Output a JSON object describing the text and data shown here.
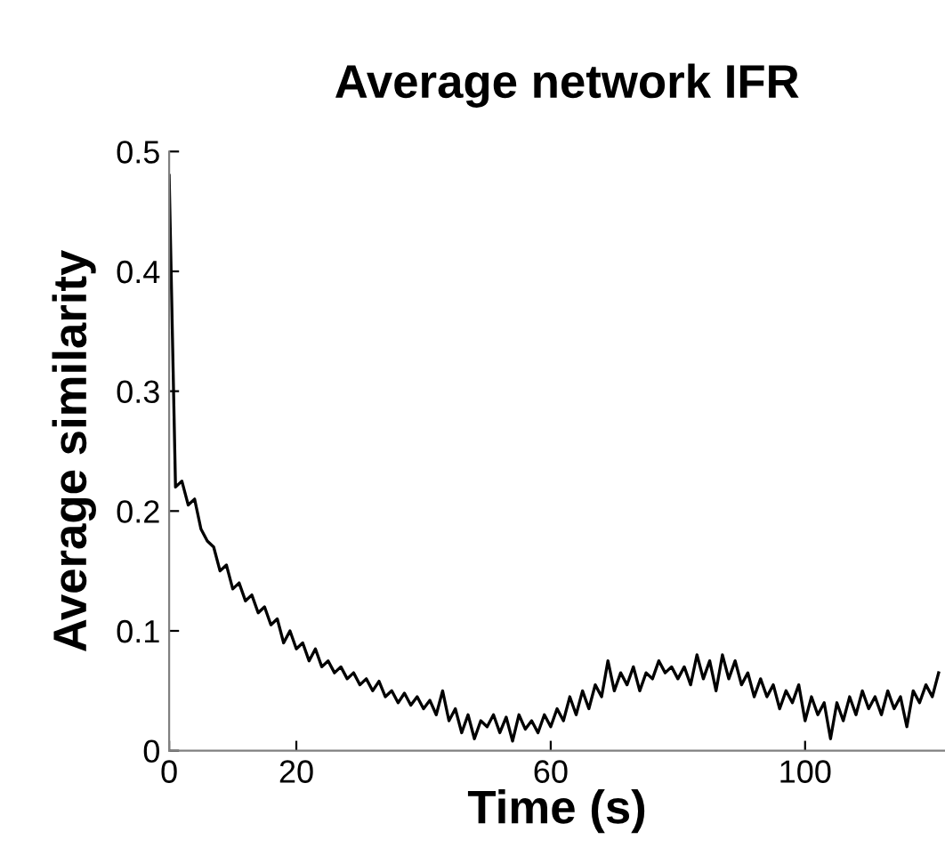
{
  "chart_data": {
    "type": "line",
    "title": "Average network IFR",
    "xlabel": "Time (s)",
    "ylabel": "Average similarity",
    "x": [
      0,
      1,
      2,
      3,
      4,
      5,
      6,
      7,
      8,
      9,
      10,
      11,
      12,
      13,
      14,
      15,
      16,
      17,
      18,
      19,
      20,
      21,
      22,
      23,
      24,
      25,
      26,
      27,
      28,
      29,
      30,
      31,
      32,
      33,
      34,
      35,
      36,
      37,
      38,
      39,
      40,
      41,
      42,
      43,
      44,
      45,
      46,
      47,
      48,
      49,
      50,
      51,
      52,
      53,
      54,
      55,
      56,
      57,
      58,
      59,
      60,
      61,
      62,
      63,
      64,
      65,
      66,
      67,
      68,
      69,
      70,
      71,
      72,
      73,
      74,
      75,
      76,
      77,
      78,
      79,
      80,
      81,
      82,
      83,
      84,
      85,
      86,
      87,
      88,
      89,
      90,
      91,
      92,
      93,
      94,
      95,
      96,
      97,
      98,
      99,
      100,
      101,
      102,
      103,
      104,
      105,
      106,
      107,
      108,
      109,
      110,
      111,
      112,
      113,
      114,
      115,
      116,
      117,
      118,
      119,
      120,
      121
    ],
    "series": [
      {
        "color": "#000000",
        "values": [
          0.48,
          0.22,
          0.225,
          0.205,
          0.21,
          0.185,
          0.175,
          0.17,
          0.15,
          0.155,
          0.135,
          0.14,
          0.125,
          0.13,
          0.115,
          0.12,
          0.105,
          0.11,
          0.09,
          0.1,
          0.085,
          0.09,
          0.075,
          0.085,
          0.07,
          0.075,
          0.065,
          0.07,
          0.06,
          0.065,
          0.055,
          0.06,
          0.05,
          0.058,
          0.045,
          0.05,
          0.04,
          0.048,
          0.038,
          0.045,
          0.035,
          0.042,
          0.03,
          0.05,
          0.025,
          0.035,
          0.015,
          0.03,
          0.01,
          0.025,
          0.02,
          0.03,
          0.015,
          0.028,
          0.008,
          0.03,
          0.018,
          0.025,
          0.015,
          0.03,
          0.02,
          0.035,
          0.025,
          0.045,
          0.03,
          0.05,
          0.035,
          0.055,
          0.045,
          0.075,
          0.05,
          0.065,
          0.055,
          0.07,
          0.05,
          0.065,
          0.06,
          0.075,
          0.065,
          0.07,
          0.06,
          0.07,
          0.055,
          0.08,
          0.06,
          0.075,
          0.05,
          0.08,
          0.06,
          0.075,
          0.055,
          0.065,
          0.045,
          0.06,
          0.045,
          0.055,
          0.035,
          0.05,
          0.04,
          0.055,
          0.025,
          0.045,
          0.03,
          0.04,
          0.01,
          0.04,
          0.025,
          0.045,
          0.03,
          0.05,
          0.035,
          0.045,
          0.03,
          0.05,
          0.035,
          0.045,
          0.02,
          0.05,
          0.04,
          0.055,
          0.045,
          0.065
        ]
      }
    ],
    "xlim": [
      0,
      122
    ],
    "ylim": [
      0,
      0.5
    ],
    "xticks": [
      0,
      20,
      60,
      100
    ],
    "yticks": [
      0,
      0.1,
      0.2,
      0.3,
      0.4,
      0.5
    ],
    "grid": false,
    "legend": false
  }
}
